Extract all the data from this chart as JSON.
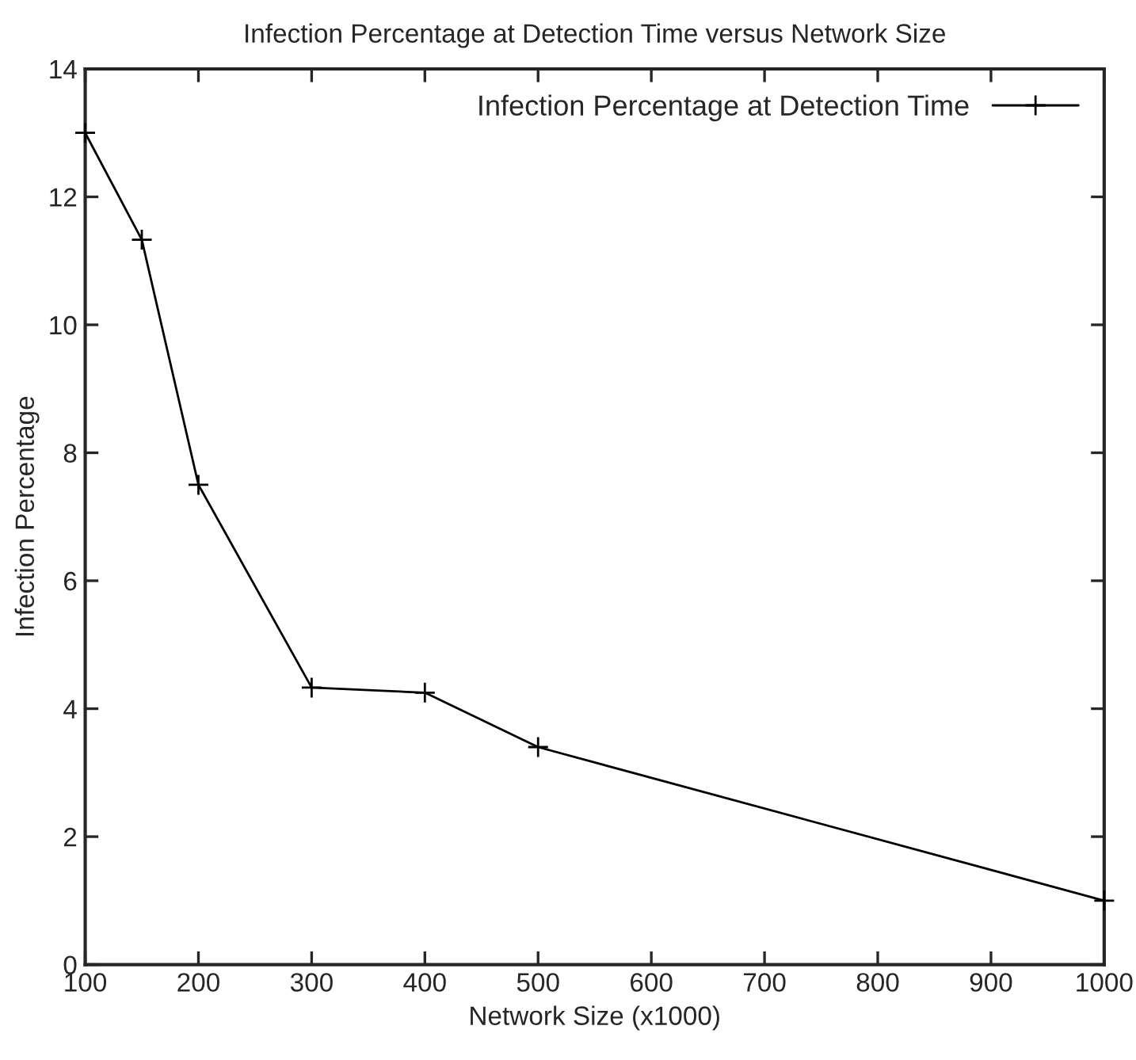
{
  "chart_data": {
    "type": "line",
    "title": "Infection Percentage at Detection Time versus Network Size",
    "xlabel": "Network Size (x1000)",
    "ylabel": "Infection Percentage",
    "x": [
      100,
      150,
      200,
      300,
      400,
      500,
      1000
    ],
    "series": [
      {
        "name": "Infection Percentage at Detection Time",
        "color": "#000000",
        "values": [
          13,
          11.33,
          7.5,
          4.33,
          4.25,
          3.4,
          1.0
        ]
      }
    ],
    "xlim": [
      100,
      1000
    ],
    "xticks": [
      100,
      200,
      300,
      400,
      500,
      600,
      700,
      800,
      900,
      1000
    ],
    "ylim": [
      0,
      14
    ],
    "yticks": [
      0,
      2,
      4,
      6,
      8,
      10,
      12,
      14
    ],
    "grid": false,
    "legend": "top right",
    "marker": "cross",
    "line_style": "solid"
  }
}
